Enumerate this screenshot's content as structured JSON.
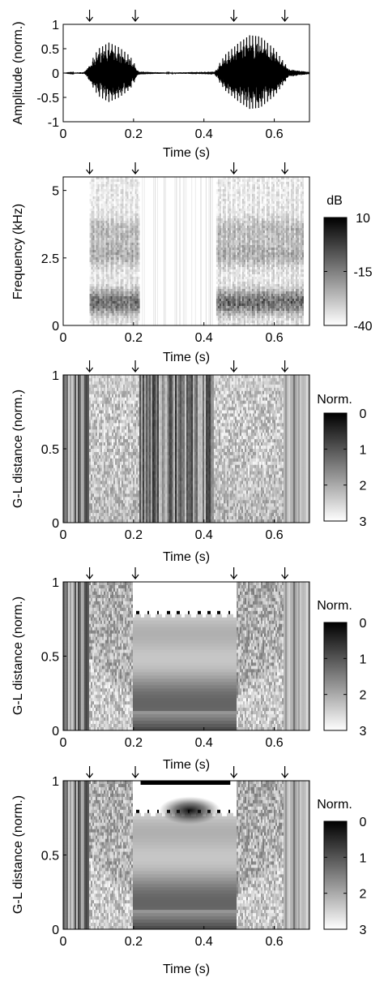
{
  "figure": {
    "time_xlabel": "Time (s)",
    "time_ticks": [
      "0",
      "0.2",
      "0.4",
      "0.6"
    ],
    "event_markers_s": [
      0.075,
      0.205,
      0.485,
      0.63
    ],
    "colors": {
      "ink": "#000000",
      "background": "#ffffff"
    }
  },
  "chart_data": [
    {
      "type": "line",
      "ylabel": "Amplitude (norm.)",
      "xlabel": "Time (s)",
      "xlim": [
        0,
        0.7
      ],
      "ylim": [
        -1,
        1
      ],
      "xticks": [
        "0",
        "0.2",
        "0.4",
        "0.6"
      ],
      "yticks": [
        "1",
        "0.5",
        "0",
        "-0.5",
        "-1"
      ],
      "series": [
        {
          "values": [
            {
              "x": 0.0,
              "y": 0.0
            },
            {
              "x": 0.06,
              "y": 0.02
            },
            {
              "x": 0.08,
              "y": 0.2
            },
            {
              "x": 0.1,
              "y": 0.4
            },
            {
              "x": 0.13,
              "y": 0.5
            },
            {
              "x": 0.16,
              "y": 0.42
            },
            {
              "x": 0.19,
              "y": 0.28
            },
            {
              "x": 0.215,
              "y": 0.03
            },
            {
              "x": 0.3,
              "y": 0.01
            },
            {
              "x": 0.43,
              "y": 0.03
            },
            {
              "x": 0.46,
              "y": 0.3
            },
            {
              "x": 0.5,
              "y": 0.5
            },
            {
              "x": 0.53,
              "y": 0.62
            },
            {
              "x": 0.56,
              "y": 0.6
            },
            {
              "x": 0.6,
              "y": 0.4
            },
            {
              "x": 0.64,
              "y": 0.08
            },
            {
              "x": 0.7,
              "y": 0.02
            }
          ]
        }
      ]
    },
    {
      "type": "heatmap",
      "ylabel": "Frequency (kHz)",
      "xlabel": "Time (s)",
      "xlim": [
        0,
        0.7
      ],
      "ylim": [
        0,
        5.5
      ],
      "xticks": [
        "0",
        "0.2",
        "0.4",
        "0.6"
      ],
      "yticks": [
        "5",
        "2.5",
        "0"
      ],
      "colorbar": {
        "title": "dB",
        "ticks": [
          "10",
          "-15",
          "-40"
        ],
        "range": [
          -40,
          10
        ]
      },
      "voiced_regions_s": [
        [
          0.075,
          0.215
        ],
        [
          0.435,
          0.68
        ]
      ]
    },
    {
      "type": "heatmap",
      "ylabel": "G-L distance (norm.)",
      "xlabel": "Time (s)",
      "xlim": [
        0,
        0.7
      ],
      "ylim": [
        0,
        1
      ],
      "xticks": [
        "0",
        "0.2",
        "0.4",
        "0.6"
      ],
      "yticks": [
        "1",
        "0.5",
        "0"
      ],
      "colorbar": {
        "title": "Norm.",
        "ticks": [
          "0",
          "1",
          "2",
          "3"
        ],
        "range": [
          0,
          3
        ]
      }
    },
    {
      "type": "heatmap",
      "ylabel": "G-L distance (norm.)",
      "xlabel": "Time (s)",
      "xlim": [
        0,
        0.7
      ],
      "ylim": [
        0,
        1
      ],
      "xticks": [
        "0",
        "0.2",
        "0.4",
        "0.6"
      ],
      "yticks": [
        "1",
        "0.5",
        "0"
      ],
      "colorbar": {
        "title": "Norm.",
        "ticks": [
          "0",
          "1",
          "2",
          "3"
        ],
        "range": [
          0,
          3
        ]
      }
    },
    {
      "type": "heatmap",
      "ylabel": "G-L distance (norm.)",
      "xlabel": "Time (s)",
      "xlim": [
        0,
        0.7
      ],
      "ylim": [
        0,
        1
      ],
      "xticks": [
        "0",
        "0.2",
        "0.4",
        "0.6"
      ],
      "yticks": [
        "1",
        "0.5",
        "0"
      ],
      "colorbar": {
        "title": "Norm.",
        "ticks": [
          "0",
          "1",
          "2",
          "3"
        ],
        "range": [
          0,
          3
        ]
      },
      "constraint_bar_s": [
        0.22,
        0.475
      ],
      "minimum_point": {
        "x": 0.36,
        "y": 0.8
      }
    }
  ]
}
